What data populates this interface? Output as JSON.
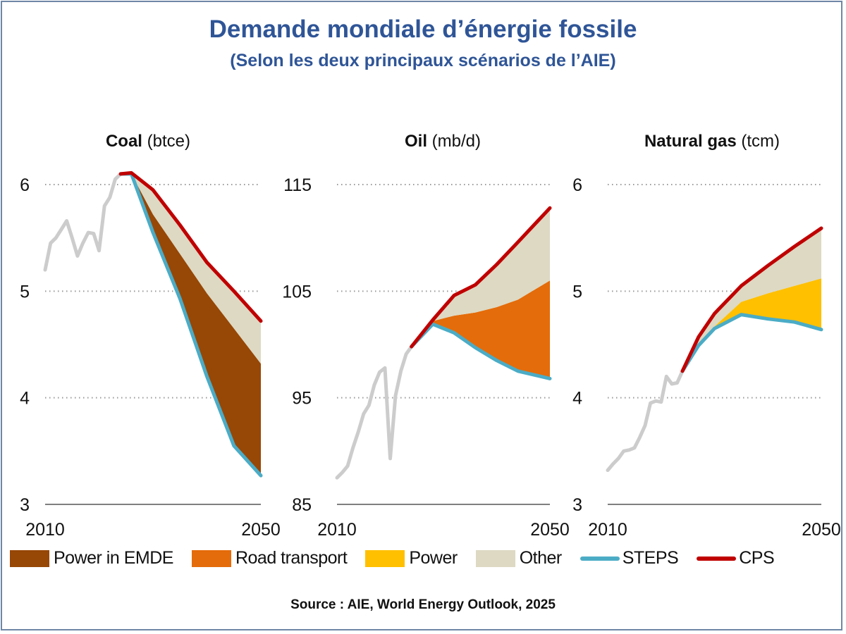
{
  "header": {
    "title": "Demande mondiale d’énergie fossile",
    "subtitle": "(Selon les deux principaux scénarios de l’AIE)"
  },
  "legend": [
    {
      "label": "Power in EMDE",
      "kind": "area",
      "color": "#974706"
    },
    {
      "label": "Road transport",
      "kind": "area",
      "color": "#e46c0a"
    },
    {
      "label": "Power",
      "kind": "area",
      "color": "#ffc000"
    },
    {
      "label": "Other",
      "kind": "area",
      "color": "#ddd9c3"
    },
    {
      "label": "STEPS",
      "kind": "line",
      "color": "#4bacc6"
    },
    {
      "label": "CPS",
      "kind": "line",
      "color": "#c00000"
    }
  ],
  "source": "Source : AIE, World Energy Outlook, 2025",
  "colors": {
    "historical": "#cccccc",
    "title": "#2f5597",
    "grid": "#999999"
  },
  "chart_data": [
    {
      "type": "area",
      "title_bold": "Coal",
      "title_unit": "(btce)",
      "xlim": [
        2010,
        2050
      ],
      "ylim": [
        3,
        6
      ],
      "xticks": [
        "2010",
        "2050"
      ],
      "yticks": [
        6,
        5,
        4,
        3
      ],
      "grid": "dotted horizontal",
      "historical": {
        "x": [
          2010,
          2011,
          2012,
          2013,
          2014,
          2015,
          2016,
          2017,
          2018,
          2019,
          2020,
          2021,
          2022,
          2023,
          2024
        ],
        "y": [
          5.2,
          5.45,
          5.5,
          5.58,
          5.66,
          5.5,
          5.33,
          5.45,
          5.55,
          5.54,
          5.38,
          5.8,
          5.88,
          6.05,
          6.1
        ]
      },
      "projection_x": [
        2024,
        2026,
        2030,
        2035,
        2040,
        2045,
        2050
      ],
      "series": [
        {
          "name": "CPS",
          "y": [
            6.1,
            6.11,
            5.95,
            5.62,
            5.27,
            5.0,
            4.72
          ]
        },
        {
          "name": "STEPS",
          "y": [
            6.1,
            6.1,
            5.55,
            4.93,
            4.2,
            3.55,
            3.27
          ]
        }
      ],
      "areas": [
        {
          "name": "Power in EMDE",
          "lower": [
            6.1,
            6.1,
            5.55,
            4.93,
            4.2,
            3.55,
            3.27
          ],
          "upper": [
            6.1,
            6.1,
            5.72,
            5.35,
            4.98,
            4.65,
            4.32
          ]
        },
        {
          "name": "Other",
          "lower": [
            6.1,
            6.1,
            5.72,
            5.35,
            4.98,
            4.65,
            4.32
          ],
          "upper": [
            6.1,
            6.11,
            5.95,
            5.62,
            5.27,
            5.0,
            4.72
          ]
        }
      ]
    },
    {
      "type": "area",
      "title_bold": "Oil",
      "title_unit": "(mb/d)",
      "xlim": [
        2010,
        2050
      ],
      "ylim": [
        85,
        115
      ],
      "xticks": [
        "2010",
        "2050"
      ],
      "yticks": [
        115,
        105,
        95,
        85
      ],
      "grid": "dotted horizontal",
      "historical": {
        "x": [
          2010,
          2011,
          2012,
          2013,
          2014,
          2015,
          2016,
          2017,
          2018,
          2019,
          2020,
          2021,
          2022,
          2023,
          2024
        ],
        "y": [
          87.5,
          88.0,
          88.6,
          90.3,
          91.8,
          93.5,
          94.3,
          96.2,
          97.4,
          97.8,
          89.3,
          95.2,
          97.5,
          99.1,
          99.8
        ]
      },
      "projection_x": [
        2024,
        2028,
        2032,
        2036,
        2040,
        2044,
        2050
      ],
      "series": [
        {
          "name": "CPS",
          "y": [
            99.8,
            102.3,
            104.6,
            105.6,
            107.5,
            109.6,
            112.8
          ]
        },
        {
          "name": "STEPS",
          "y": [
            99.8,
            101.9,
            101.1,
            99.7,
            98.5,
            97.5,
            96.8
          ]
        }
      ],
      "areas": [
        {
          "name": "Road transport",
          "lower": [
            99.8,
            101.9,
            101.1,
            99.7,
            98.5,
            97.5,
            96.8
          ],
          "upper": [
            99.8,
            102.2,
            102.7,
            103.0,
            103.5,
            104.2,
            106.0
          ]
        },
        {
          "name": "Other",
          "lower": [
            99.8,
            102.2,
            102.7,
            103.0,
            103.5,
            104.2,
            106.0
          ],
          "upper": [
            99.8,
            102.3,
            104.6,
            105.6,
            107.5,
            109.6,
            112.8
          ]
        }
      ]
    },
    {
      "type": "area",
      "title_bold": "Natural gas",
      "title_unit": "(tcm)",
      "xlim": [
        2010,
        2050
      ],
      "ylim": [
        3,
        6
      ],
      "xticks": [
        "2010",
        "2050"
      ],
      "yticks": [
        6,
        5,
        4,
        3
      ],
      "grid": "dotted horizontal",
      "historical": {
        "x": [
          2010,
          2011,
          2012,
          2013,
          2014,
          2015,
          2016,
          2017,
          2018,
          2019,
          2020,
          2021,
          2022,
          2023,
          2024
        ],
        "y": [
          3.32,
          3.38,
          3.43,
          3.5,
          3.51,
          3.53,
          3.63,
          3.74,
          3.95,
          3.97,
          3.96,
          4.2,
          4.13,
          4.14,
          4.25
        ]
      },
      "projection_x": [
        2024,
        2027,
        2030,
        2035,
        2040,
        2045,
        2050
      ],
      "series": [
        {
          "name": "CPS",
          "y": [
            4.25,
            4.57,
            4.79,
            5.05,
            5.24,
            5.42,
            5.59
          ]
        },
        {
          "name": "STEPS",
          "y": [
            4.25,
            4.49,
            4.65,
            4.78,
            4.74,
            4.71,
            4.64
          ]
        }
      ],
      "areas": [
        {
          "name": "Power",
          "lower": [
            4.25,
            4.49,
            4.65,
            4.78,
            4.74,
            4.71,
            4.64
          ],
          "upper": [
            4.25,
            4.49,
            4.67,
            4.9,
            4.98,
            5.05,
            5.12
          ]
        },
        {
          "name": "Other",
          "lower": [
            4.25,
            4.49,
            4.67,
            4.9,
            4.98,
            5.05,
            5.12
          ],
          "upper": [
            4.25,
            4.57,
            4.79,
            5.05,
            5.24,
            5.42,
            5.59
          ]
        }
      ]
    }
  ]
}
